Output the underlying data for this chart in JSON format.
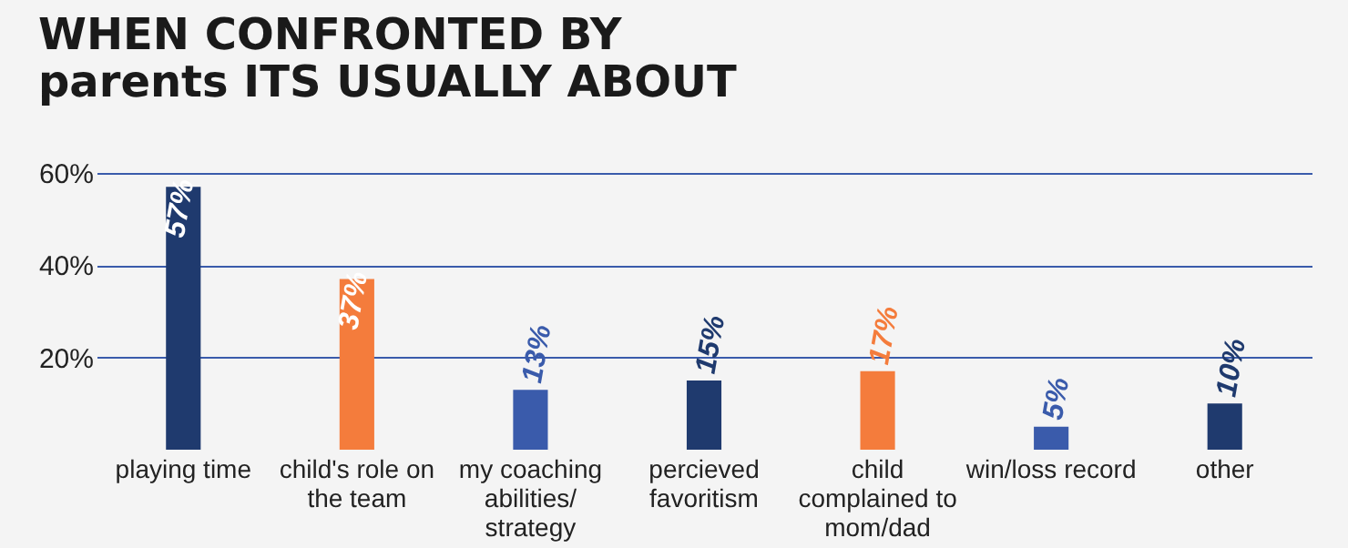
{
  "chart_data": {
    "type": "bar",
    "title": "WHEN CONFRONTED BY\nparents ITS USUALLY ABOUT",
    "categories": [
      "playing time",
      "child's role on the team",
      "my coaching abilities/ strategy",
      "percieved favoritism",
      "child complained to mom/dad",
      "win/loss record",
      "other"
    ],
    "values": [
      57,
      37,
      13,
      15,
      17,
      5,
      10
    ],
    "colors": [
      "#1f3a6e",
      "#f47c3c",
      "#3a5bab",
      "#1f3a6e",
      "#f47c3c",
      "#3a5bab",
      "#1f3a6e"
    ],
    "value_labels": [
      "57%",
      "37%",
      "13%",
      "15%",
      "17%",
      "5%",
      "10%"
    ],
    "ylim": [
      0,
      60
    ],
    "yticks": [
      {
        "value": 20,
        "label": "20%"
      },
      {
        "value": 40,
        "label": "40%"
      },
      {
        "value": 60,
        "label": "60%"
      }
    ],
    "grid": "y"
  }
}
